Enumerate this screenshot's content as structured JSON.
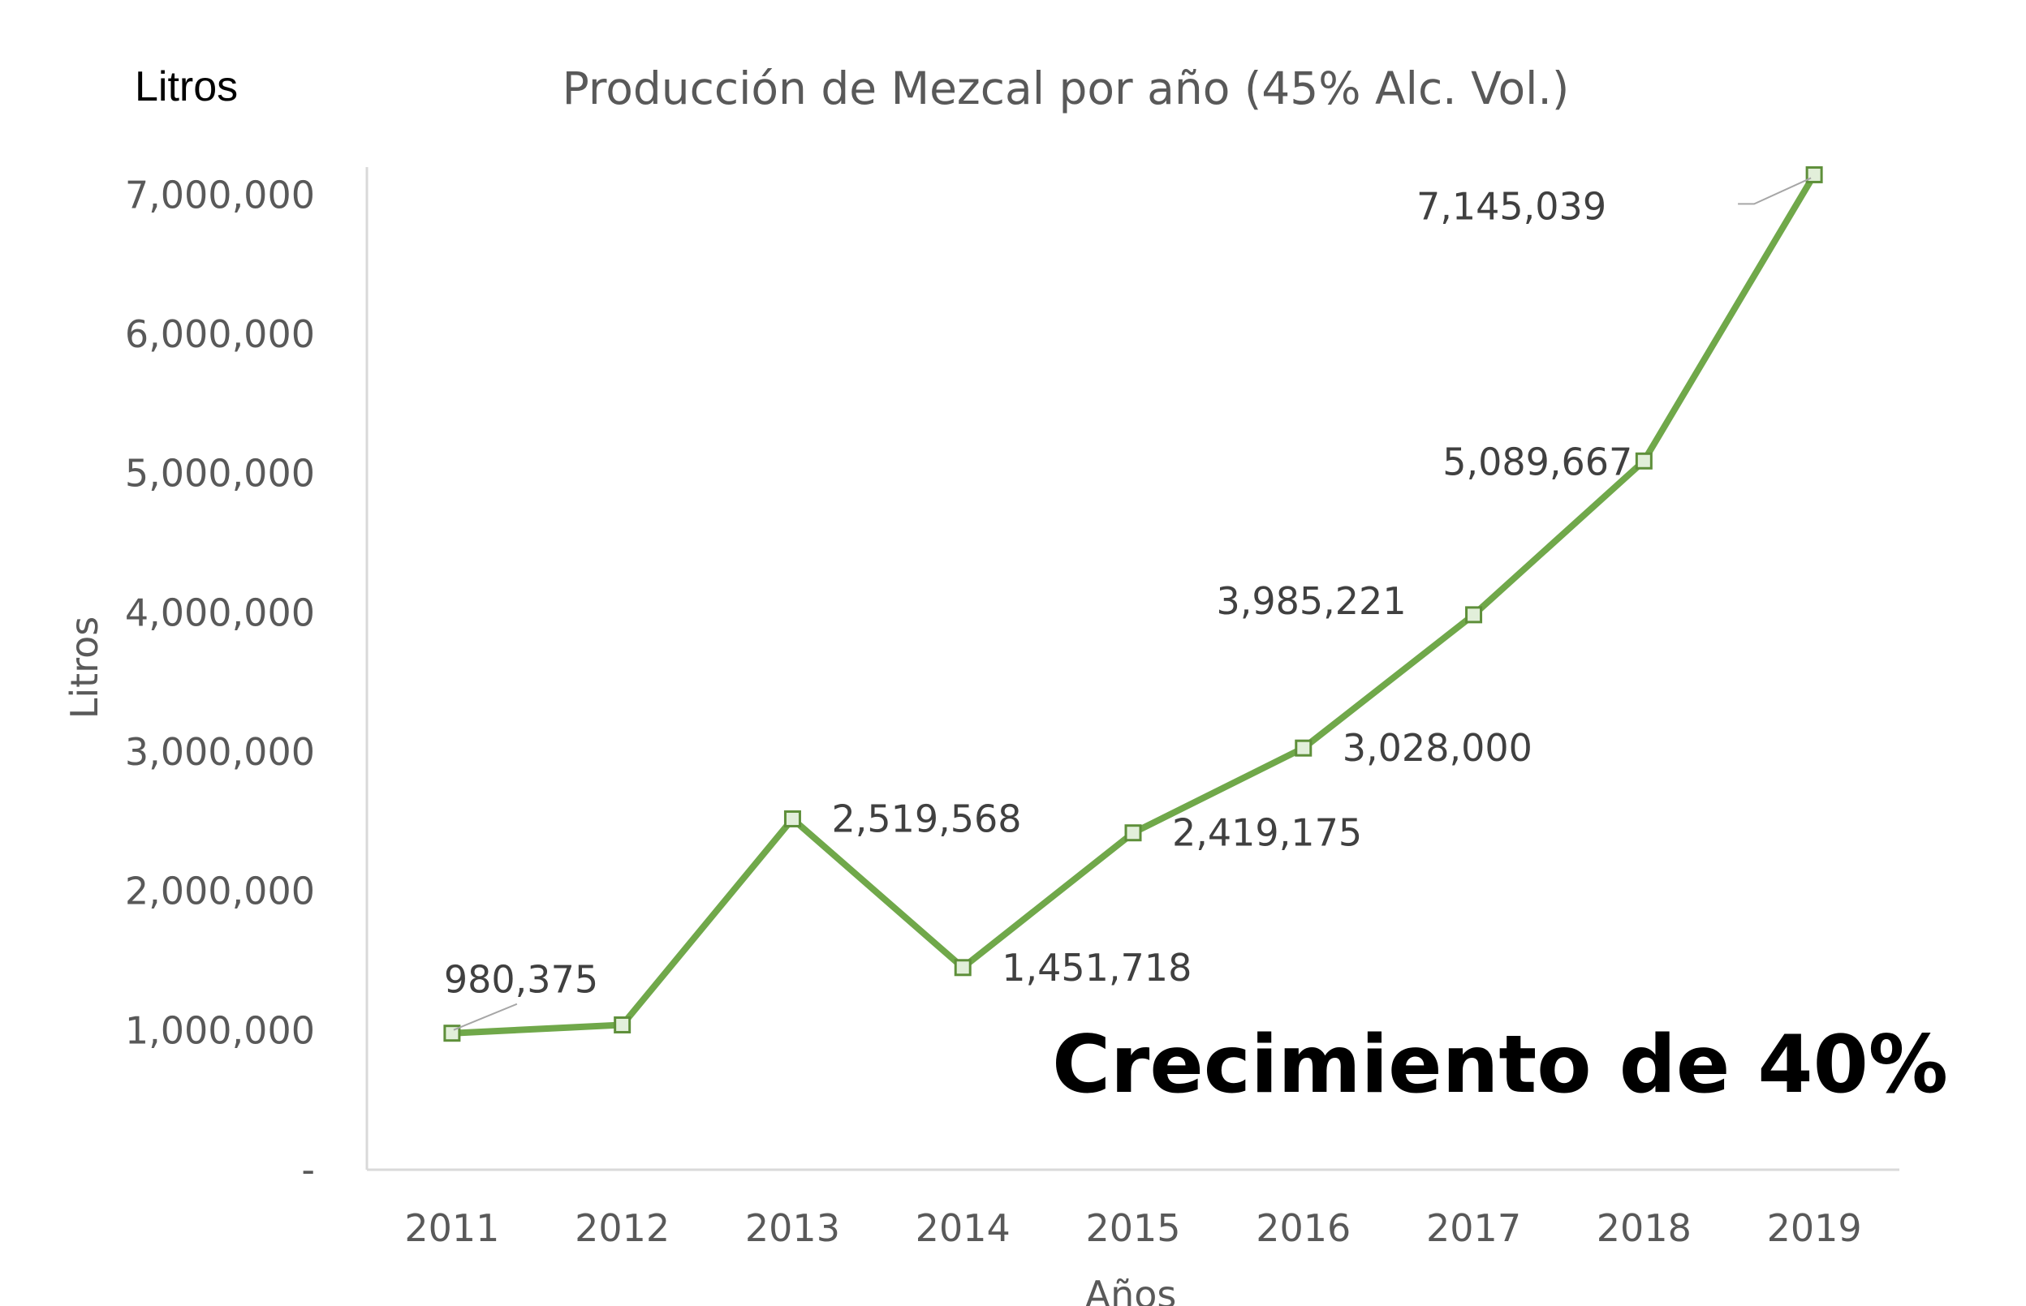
{
  "chart_data": {
    "type": "line",
    "title": "Producción de Mezcal por año (45% Alc. Vol.)",
    "corner_label": "Litros",
    "xlabel": "Años",
    "ylabel": "Litros",
    "categories": [
      "2011",
      "2012",
      "2013",
      "2014",
      "2015",
      "2016",
      "2017",
      "2018",
      "2019"
    ],
    "series": [
      {
        "values": [
          980375,
          1040000,
          2519568,
          1451718,
          2419175,
          3028000,
          3985221,
          5089667,
          7145039
        ]
      }
    ],
    "data_labels": [
      "980,375",
      "",
      "2,519,568",
      "1,451,718",
      "2,419,175",
      "3,028,000",
      "3,985,221",
      "5,089,667",
      "7,145,039"
    ],
    "ylim": [
      0,
      7200000
    ],
    "yticks": [
      0,
      1000000,
      2000000,
      3000000,
      4000000,
      5000000,
      6000000,
      7000000
    ],
    "ytick_labels": [
      "-",
      "1,000,000",
      "2,000,000",
      "3,000,000",
      "4,000,000",
      "5,000,000",
      "6,000,000",
      "7,000,000"
    ],
    "grid": false,
    "legend": "none",
    "line_color": "#70a84a",
    "marker_fill": "#e2efda",
    "marker_stroke": "#5e8f3a",
    "annotation": "Crecimiento de 40%"
  }
}
